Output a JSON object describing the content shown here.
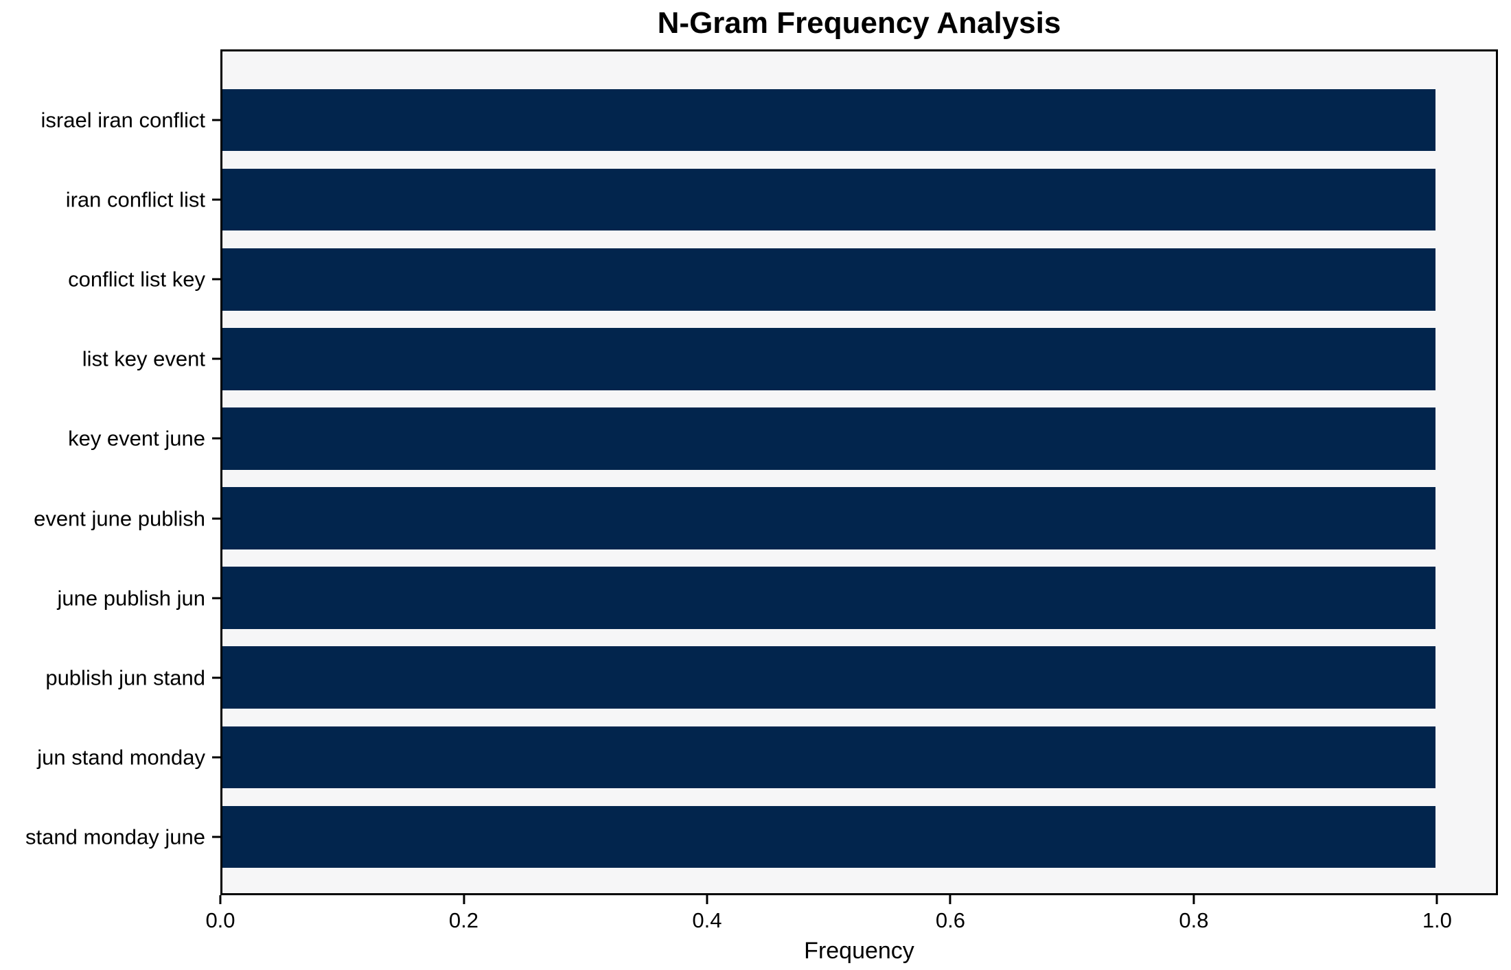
{
  "chart_data": {
    "type": "bar",
    "orientation": "horizontal",
    "title": "N-Gram Frequency Analysis",
    "xlabel": "Frequency",
    "ylabel": "",
    "categories": [
      "israel iran conflict",
      "iran conflict list",
      "conflict list key",
      "list key event",
      "key event june",
      "event june publish",
      "june publish jun",
      "publish jun stand",
      "jun stand monday",
      "stand monday june"
    ],
    "values": [
      1.0,
      1.0,
      1.0,
      1.0,
      1.0,
      1.0,
      1.0,
      1.0,
      1.0,
      1.0
    ],
    "xlim": [
      0,
      1.05
    ],
    "xtick_values": [
      0.0,
      0.2,
      0.4,
      0.6,
      0.8,
      1.0
    ],
    "xtick_labels": [
      "0.0",
      "0.2",
      "0.4",
      "0.6",
      "0.8",
      "1.0"
    ],
    "grid": false,
    "legend": "none",
    "colors": {
      "bar": "#02254d",
      "plot_background": "#f6f6f7",
      "figure_background": "#ffffff",
      "spine": "#000000",
      "text": "#000000"
    }
  }
}
